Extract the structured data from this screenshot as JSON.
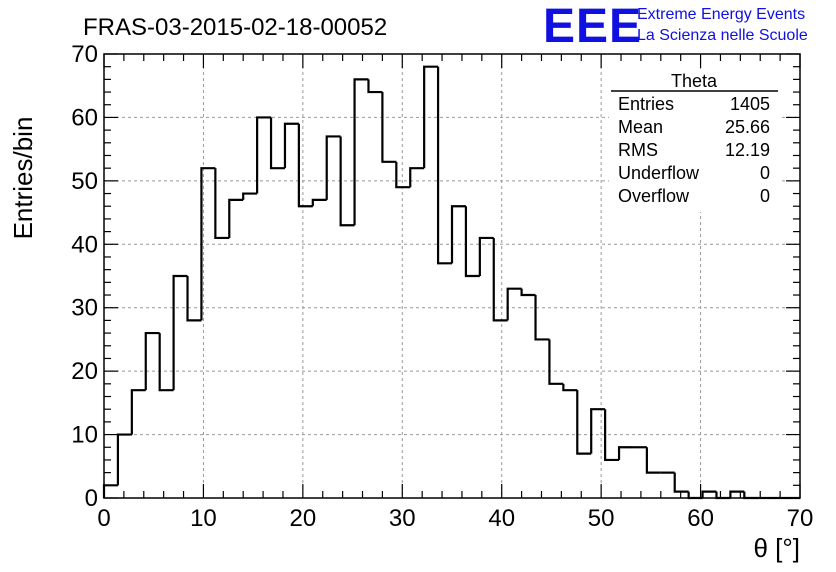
{
  "chart_data": {
    "type": "histogram",
    "title": "FRAS-03-2015-02-18-00052",
    "xlabel": "θ [°]",
    "ylabel": "Entries/bin",
    "xlim": [
      0,
      70
    ],
    "ylim": [
      0,
      70
    ],
    "grid": true,
    "bin_width": 1.4,
    "x_ticks": [
      "0",
      "10",
      "20",
      "30",
      "40",
      "50",
      "60",
      "70"
    ],
    "y_ticks": [
      "0",
      "10",
      "20",
      "30",
      "40",
      "50",
      "60",
      "70"
    ],
    "bin_edges_start": 0,
    "values": [
      2,
      10,
      17,
      26,
      17,
      35,
      28,
      52,
      41,
      47,
      48,
      60,
      52,
      59,
      46,
      47,
      57,
      43,
      66,
      64,
      53,
      49,
      52,
      68,
      37,
      46,
      35,
      41,
      28,
      33,
      32,
      25,
      18,
      17,
      7,
      14,
      6,
      8,
      8,
      4,
      4,
      1,
      0,
      1,
      0,
      1,
      0,
      0,
      0,
      0
    ],
    "stats": {
      "name": "Theta",
      "rows": [
        {
          "label": "Entries",
          "value": "1405"
        },
        {
          "label": "Mean",
          "value": "25.66"
        },
        {
          "label": "RMS",
          "value": "12.19"
        },
        {
          "label": "Underflow",
          "value": "0"
        },
        {
          "label": "Overflow",
          "value": "0"
        }
      ]
    }
  },
  "logo": {
    "mark": "EEE",
    "line1": "Extreme Energy Events",
    "line2": "La Scienza nelle Scuole",
    "color": "#1010e0"
  }
}
